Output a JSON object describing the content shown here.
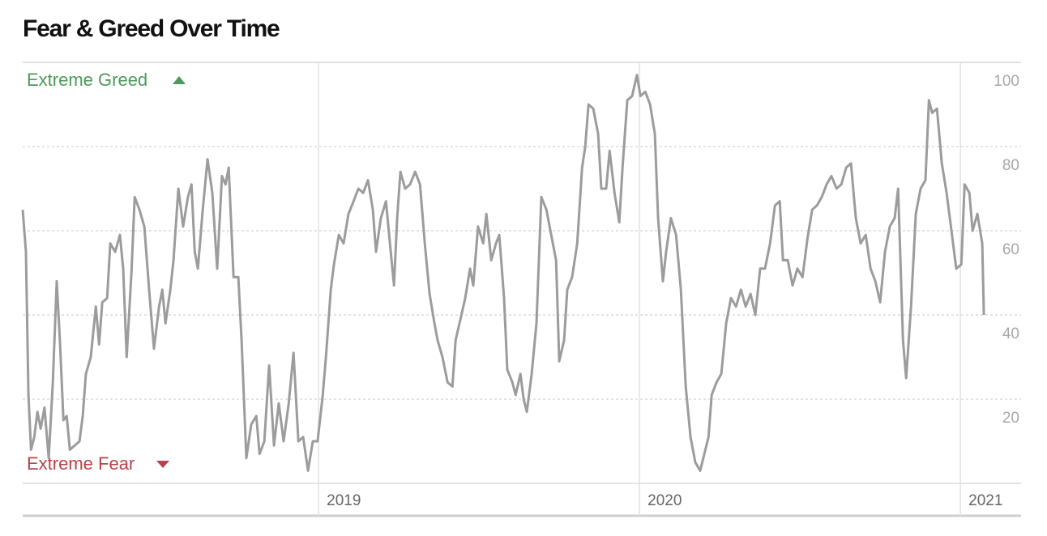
{
  "chart_data": {
    "type": "line",
    "title": "Fear & Greed Over Time",
    "annotations": [
      {
        "text": "Extreme Greed",
        "color": "#4d9a5a"
      },
      {
        "text": "Extreme Fear",
        "color": "#b8424a"
      }
    ],
    "xlim": [
      2018.078,
      2021.189
    ],
    "xticks": [
      2019,
      2020,
      2021
    ],
    "ylim": [
      0,
      100
    ],
    "yticks": [
      20,
      40,
      60,
      80,
      100
    ],
    "grid": true,
    "x": [
      2018.078,
      2018.088,
      2018.096,
      2018.104,
      2018.114,
      2018.124,
      2018.134,
      2018.146,
      2018.159,
      2018.172,
      2018.184,
      2018.194,
      2018.205,
      2018.215,
      2018.225,
      2018.24,
      2018.255,
      2018.265,
      2018.275,
      2018.29,
      2018.306,
      2018.316,
      2018.326,
      2018.341,
      2018.351,
      2018.366,
      2018.381,
      2018.391,
      2018.402,
      2018.417,
      2018.427,
      2018.442,
      2018.457,
      2018.472,
      2018.487,
      2018.503,
      2018.513,
      2018.523,
      2018.538,
      2018.548,
      2018.563,
      2018.578,
      2018.593,
      2018.604,
      2018.614,
      2018.624,
      2018.639,
      2018.654,
      2018.669,
      2018.684,
      2018.699,
      2018.71,
      2018.72,
      2018.735,
      2018.75,
      2018.76,
      2018.775,
      2018.79,
      2018.806,
      2018.816,
      2018.831,
      2018.846,
      2018.861,
      2018.876,
      2018.891,
      2018.907,
      2018.922,
      2018.937,
      2018.952,
      2018.967,
      2018.982,
      2018.997,
      2019.013,
      2019.023,
      2019.038,
      2019.048,
      2019.063,
      2019.078,
      2019.093,
      2019.109,
      2019.124,
      2019.139,
      2019.154,
      2019.169,
      2019.179,
      2019.194,
      2019.21,
      2019.22,
      2019.235,
      2019.245,
      2019.255,
      2019.27,
      2019.285,
      2019.301,
      2019.316,
      2019.331,
      2019.346,
      2019.361,
      2019.371,
      2019.386,
      2019.402,
      2019.417,
      2019.427,
      2019.442,
      2019.457,
      2019.472,
      2019.482,
      2019.497,
      2019.513,
      2019.523,
      2019.538,
      2019.553,
      2019.563,
      2019.578,
      2019.588,
      2019.604,
      2019.614,
      2019.629,
      2019.639,
      2019.649,
      2019.664,
      2019.679,
      2019.694,
      2019.71,
      2019.725,
      2019.74,
      2019.75,
      2019.765,
      2019.775,
      2019.79,
      2019.806,
      2019.821,
      2019.831,
      2019.841,
      2019.856,
      2019.871,
      2019.881,
      2019.896,
      2019.907,
      2019.922,
      2019.937,
      2019.947,
      2019.962,
      2019.977,
      2019.992,
      2020.003,
      2020.018,
      2020.033,
      2020.048,
      2020.058,
      2020.073,
      2020.083,
      2020.098,
      2020.114,
      2020.129,
      2020.144,
      2020.159,
      2020.174,
      2020.189,
      2020.199,
      2020.215,
      2020.225,
      2020.24,
      2020.255,
      2020.27,
      2020.285,
      2020.301,
      2020.316,
      2020.331,
      2020.346,
      2020.361,
      2020.376,
      2020.391,
      2020.407,
      2020.422,
      2020.437,
      2020.447,
      2020.462,
      2020.477,
      2020.492,
      2020.508,
      2020.523,
      2020.538,
      2020.553,
      2020.568,
      2020.583,
      2020.598,
      2020.614,
      2020.629,
      2020.644,
      2020.659,
      2020.674,
      2020.689,
      2020.705,
      2020.72,
      2020.735,
      2020.75,
      2020.765,
      2020.78,
      2020.795,
      2020.806,
      2020.821,
      2020.831,
      2020.846,
      2020.861,
      2020.876,
      2020.891,
      2020.902,
      2020.912,
      2020.927,
      2020.942,
      2020.957,
      2020.972,
      2020.987,
      2021.003,
      2021.013,
      2021.028,
      2021.038,
      2021.053,
      2021.068,
      2021.073
    ],
    "series": [
      {
        "color": "#9c9c9c",
        "values": [
          65,
          55,
          21,
          8,
          11,
          17,
          13,
          18,
          6,
          24,
          48,
          34,
          15,
          16,
          8,
          9,
          10,
          16,
          26,
          30,
          42,
          33,
          43,
          44,
          57,
          55,
          59,
          51,
          30,
          50,
          68,
          65,
          61,
          46,
          32,
          42,
          46,
          38,
          46,
          53,
          70,
          61,
          68,
          71,
          55,
          51,
          65,
          77,
          69,
          51,
          73,
          71,
          75,
          49,
          49,
          34,
          6,
          14,
          16,
          7,
          10,
          28,
          9,
          19,
          10,
          19,
          31,
          10,
          11,
          3,
          10,
          10,
          21,
          30,
          46,
          52,
          59,
          57,
          64,
          67,
          70,
          69,
          72,
          65,
          55,
          63,
          67,
          59,
          47,
          63,
          74,
          70,
          71,
          74,
          71,
          57,
          45,
          38,
          34,
          30,
          24,
          23,
          34,
          39,
          44,
          51,
          47,
          61,
          57,
          64,
          53,
          57,
          59,
          44,
          27,
          24,
          21,
          26,
          20,
          17,
          26,
          38,
          68,
          65,
          59,
          53,
          29,
          34,
          46,
          49,
          57,
          75,
          80,
          90,
          89,
          83,
          70,
          70,
          79,
          69,
          62,
          75,
          91,
          92,
          97,
          92,
          93,
          90,
          83,
          63,
          48,
          55,
          63,
          59,
          46,
          23,
          11,
          5,
          3,
          6,
          11,
          21,
          24,
          26,
          38,
          44,
          42,
          46,
          42,
          45,
          40,
          51,
          51,
          57,
          66,
          67,
          53,
          53,
          47,
          51,
          49,
          58,
          65,
          66,
          68,
          71,
          73,
          70,
          71,
          75,
          76,
          63,
          57,
          59,
          51,
          48,
          43,
          55,
          61,
          63,
          70,
          34,
          25,
          42,
          64,
          70,
          72,
          91,
          88,
          89,
          76,
          69,
          60,
          51,
          52,
          71,
          69,
          60,
          64,
          57,
          40
        ]
      }
    ]
  }
}
